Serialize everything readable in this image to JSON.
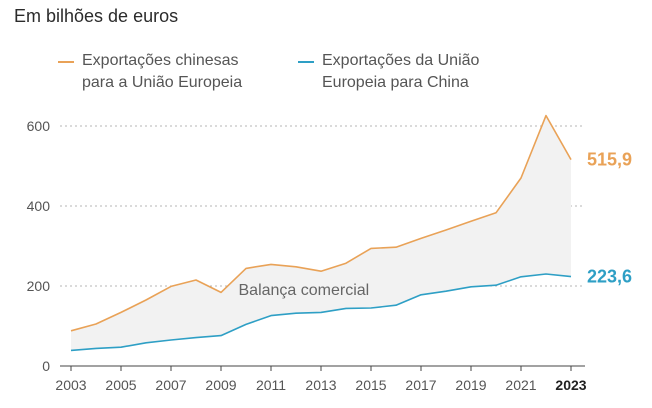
{
  "chart_data": {
    "type": "line",
    "subtitle": "Em bilhões de euros",
    "x": [
      2003,
      2004,
      2005,
      2006,
      2007,
      2008,
      2009,
      2010,
      2011,
      2012,
      2013,
      2014,
      2015,
      2016,
      2017,
      2018,
      2019,
      2020,
      2021,
      2022,
      2023
    ],
    "series": [
      {
        "name_line1": "Exportações chinesas",
        "name_line2": "para a União Europeia",
        "color": "#e9a257",
        "values": [
          88,
          105,
          134,
          165,
          199,
          215,
          184,
          244,
          254,
          248,
          237,
          257,
          294,
          297,
          319,
          340,
          362,
          383,
          470,
          626,
          515.9
        ],
        "end_label": "515,9"
      },
      {
        "name_line1": "Exportações da União",
        "name_line2": "Europeia para China",
        "color": "#2e9fc5",
        "values": [
          39,
          44,
          47,
          58,
          65,
          71,
          76,
          104,
          126,
          132,
          134,
          144,
          145,
          152,
          178,
          187,
          198,
          202,
          223,
          230,
          223.6
        ],
        "end_label": "223,6"
      }
    ],
    "area_label": "Balança comercial",
    "area_color": "#f2f2f2",
    "y_ticks": [
      0,
      200,
      400,
      600
    ],
    "y_tick_labels": [
      "0",
      "200",
      "400",
      "600"
    ],
    "x_ticks": [
      2003,
      2005,
      2007,
      2009,
      2011,
      2013,
      2015,
      2017,
      2019,
      2021,
      2023
    ],
    "x_tick_labels": [
      "2003",
      "2005",
      "2007",
      "2009",
      "2011",
      "2013",
      "2015",
      "2017",
      "2019",
      "2021",
      "2023"
    ],
    "ylim": [
      0,
      640
    ],
    "xlim": [
      2003,
      2023
    ],
    "grid": true
  }
}
